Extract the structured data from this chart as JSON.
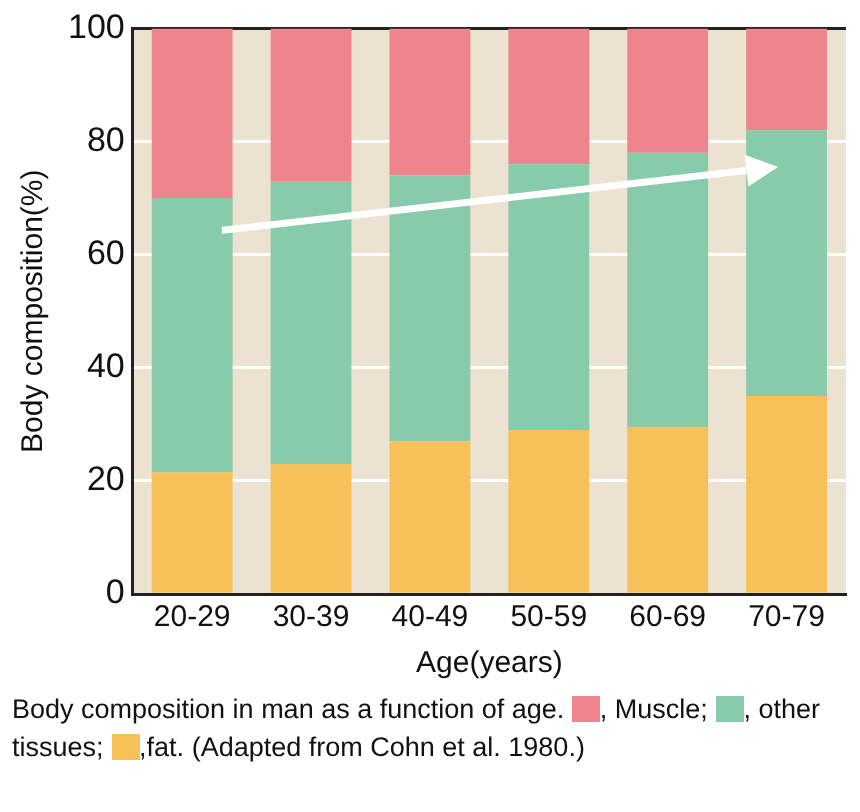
{
  "chart_data": {
    "type": "bar",
    "stacked": true,
    "xlabel": "Age(years)",
    "ylabel": "Body composition(%)",
    "categories": [
      "20-29",
      "30-39",
      "40-49",
      "50-59",
      "60-69",
      "70-79"
    ],
    "series": [
      {
        "name": ",fat.",
        "color": "#f7c058",
        "values": [
          21.5,
          23,
          27,
          29,
          29.5,
          35
        ]
      },
      {
        "name": ", other tissues;",
        "color": "#88cbab",
        "values": [
          48.5,
          50,
          47,
          47,
          48.5,
          47
        ]
      },
      {
        "name": ", Muscle;",
        "color": "#ee848c",
        "values": [
          30,
          27,
          26,
          24,
          22,
          18
        ]
      }
    ],
    "ylim": [
      0,
      100
    ],
    "yticks": [
      0,
      20,
      40,
      60,
      80,
      100
    ],
    "grid": "y",
    "legend": "bottom",
    "annotations": [
      "Body composition in man as a function of age.",
      "(Adapted from Cohn et al. 1980.)"
    ]
  }
}
